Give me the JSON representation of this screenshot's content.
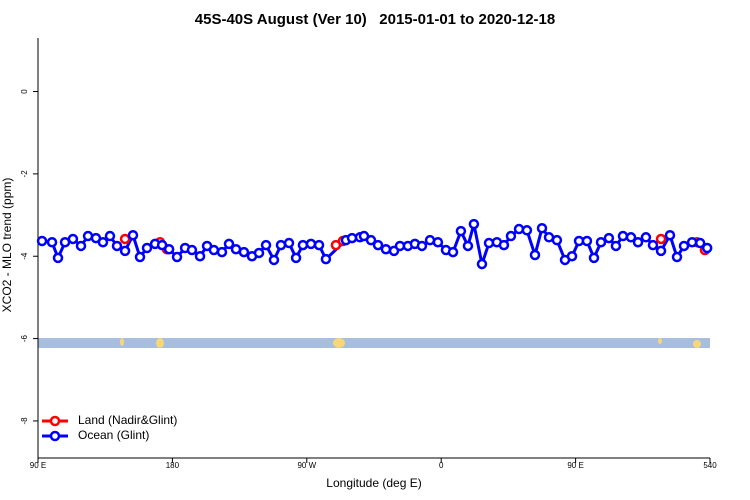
{
  "chart_data": {
    "type": "line",
    "title": "45S-40S August (Ver 10)   2015-01-01 to 2020-12-18",
    "x_label": "Longitude (deg E)",
    "y_label": "XCO2 - MLO trend (ppm)",
    "xlim": [
      90,
      540
    ],
    "ylim": [
      -8.9,
      1.3
    ],
    "xticks": [
      {
        "value": 90,
        "label": "90 E"
      },
      180,
      {
        "value": 270,
        "label": "90 W"
      },
      {
        "value": 360,
        "label": "0"
      },
      {
        "value": 450,
        "label": "90 E"
      },
      540
    ],
    "yticks": [
      0,
      -2,
      -4,
      -6,
      -8
    ],
    "legend": "bottomleft",
    "series": [
      {
        "name": "Land (Nadir&Glint)",
        "color": "#ff0000",
        "x": [
          148.3,
          null,
          171.7,
          176.4,
          null,
          289.5,
          294.2,
          null,
          507.2,
          null,
          531.3,
          536.6
        ],
        "values": [
          -3.58,
          null,
          -3.66,
          -3.83,
          null,
          -3.73,
          -3.63,
          null,
          -3.58,
          null,
          -3.66,
          -3.85
        ]
      },
      {
        "name": "Ocean (Glint)",
        "color": "#0000ff",
        "x": [
          92.7,
          99.4,
          103.4,
          108.1,
          113.4,
          118.8,
          123.5,
          128.8,
          133.5,
          138.2,
          142.9,
          148.3,
          153.6,
          158.3,
          163.0,
          168.4,
          173.1,
          177.8,
          183.1,
          188.5,
          193.1,
          198.5,
          203.2,
          207.8,
          213.2,
          217.9,
          222.6,
          227.9,
          233.3,
          238.0,
          242.7,
          248.0,
          252.7,
          258.1,
          262.8,
          267.4,
          272.8,
          278.2,
          282.8,
          296.2,
          300.3,
          305.6,
          308.3,
          313.0,
          317.7,
          323.0,
          328.4,
          332.4,
          337.7,
          342.4,
          347.1,
          352.5,
          357.8,
          363.2,
          367.9,
          373.2,
          377.9,
          381.9,
          387.3,
          392.0,
          397.3,
          402.0,
          406.7,
          412.1,
          417.4,
          422.8,
          427.5,
          432.2,
          437.5,
          442.9,
          447.6,
          452.3,
          457.6,
          462.3,
          467.0,
          472.3,
          477.0,
          481.7,
          487.1,
          491.8,
          497.1,
          501.8,
          507.2,
          513.2,
          517.9,
          522.6,
          528.0,
          533.4,
          538.1
        ],
        "values": [
          -3.63,
          -3.66,
          -4.04,
          -3.66,
          -3.58,
          -3.75,
          -3.51,
          -3.56,
          -3.66,
          -3.51,
          -3.75,
          -3.87,
          -3.49,
          -4.02,
          -3.8,
          -3.7,
          -3.73,
          -3.83,
          -4.02,
          -3.8,
          -3.85,
          -4.0,
          -3.75,
          -3.85,
          -3.9,
          -3.7,
          -3.83,
          -3.9,
          -4.0,
          -3.92,
          -3.73,
          -4.09,
          -3.73,
          -3.68,
          -4.04,
          -3.73,
          -3.7,
          -3.73,
          -4.07,
          -3.61,
          -3.56,
          -3.54,
          -3.51,
          -3.61,
          -3.73,
          -3.83,
          -3.87,
          -3.75,
          -3.75,
          -3.7,
          -3.75,
          -3.61,
          -3.66,
          -3.85,
          -3.9,
          -3.39,
          -3.75,
          -3.22,
          -4.19,
          -3.68,
          -3.66,
          -3.73,
          -3.51,
          -3.34,
          -3.37,
          -3.97,
          -3.32,
          -3.54,
          -3.61,
          -4.09,
          -4.0,
          -3.63,
          -3.63,
          -4.04,
          -3.66,
          -3.56,
          -3.75,
          -3.51,
          -3.54,
          -3.66,
          -3.54,
          -3.73,
          -3.87,
          -3.49,
          -4.02,
          -3.75,
          -3.66,
          -3.68,
          -3.8
        ]
      }
    ]
  }
}
